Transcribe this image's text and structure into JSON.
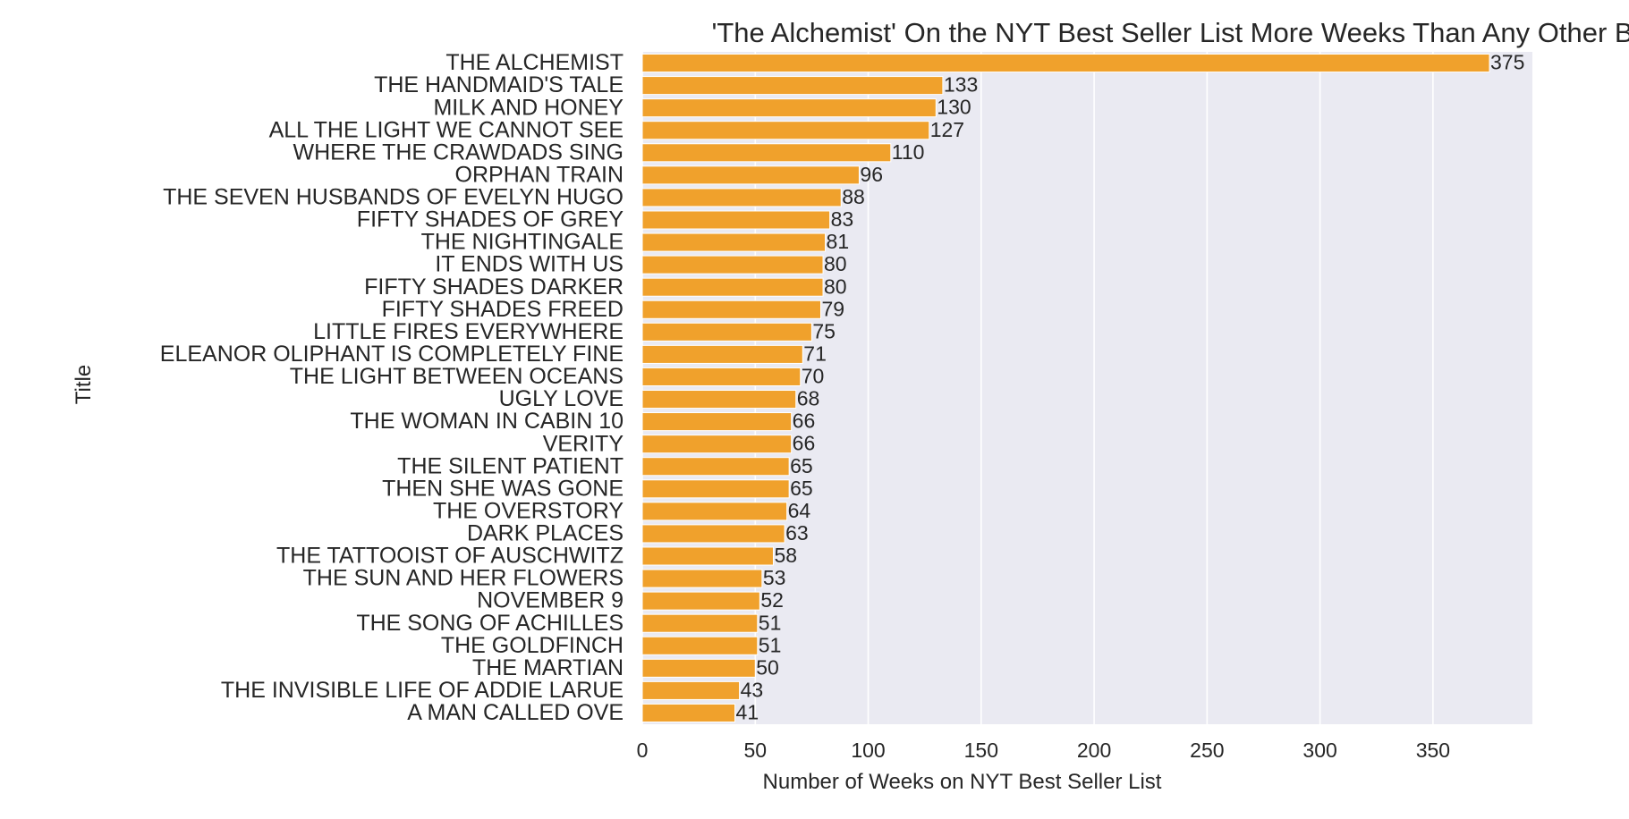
{
  "chart_data": {
    "type": "bar",
    "orientation": "horizontal",
    "title": "'The Alchemist' On the NYT Best Seller List More Weeks Than Any Other Book",
    "xlabel": "Number of Weeks on NYT Best Seller List",
    "ylabel": "Title",
    "xlim": [
      0,
      394
    ],
    "xticks": [
      0,
      50,
      100,
      150,
      200,
      250,
      300,
      350
    ],
    "grid": true,
    "bar_color": "#f0a12c",
    "plot_background": "#eaeaf2",
    "grid_color": "#ffffff",
    "categories": [
      "THE ALCHEMIST",
      "THE HANDMAID'S TALE",
      "MILK AND HONEY",
      "ALL THE LIGHT WE CANNOT SEE",
      "WHERE THE CRAWDADS SING",
      "ORPHAN TRAIN",
      "THE SEVEN HUSBANDS OF EVELYN HUGO",
      "FIFTY SHADES OF GREY",
      "THE NIGHTINGALE",
      "IT ENDS WITH US",
      "FIFTY SHADES DARKER",
      "FIFTY SHADES FREED",
      "LITTLE FIRES EVERYWHERE",
      "ELEANOR OLIPHANT IS COMPLETELY FINE",
      "THE LIGHT BETWEEN OCEANS",
      "UGLY LOVE",
      "THE WOMAN IN CABIN 10",
      "VERITY",
      "THE SILENT PATIENT",
      "THEN SHE WAS GONE",
      "THE OVERSTORY",
      "DARK PLACES",
      "THE TATTOOIST OF AUSCHWITZ",
      "THE SUN AND HER FLOWERS",
      "NOVEMBER 9",
      "THE SONG OF ACHILLES",
      "THE GOLDFINCH",
      "THE MARTIAN",
      "THE INVISIBLE LIFE OF ADDIE LARUE",
      "A MAN CALLED OVE"
    ],
    "values": [
      375,
      133,
      130,
      127,
      110,
      96,
      88,
      83,
      81,
      80,
      80,
      79,
      75,
      71,
      70,
      68,
      66,
      66,
      65,
      65,
      64,
      63,
      58,
      53,
      52,
      51,
      51,
      50,
      43,
      41
    ]
  }
}
